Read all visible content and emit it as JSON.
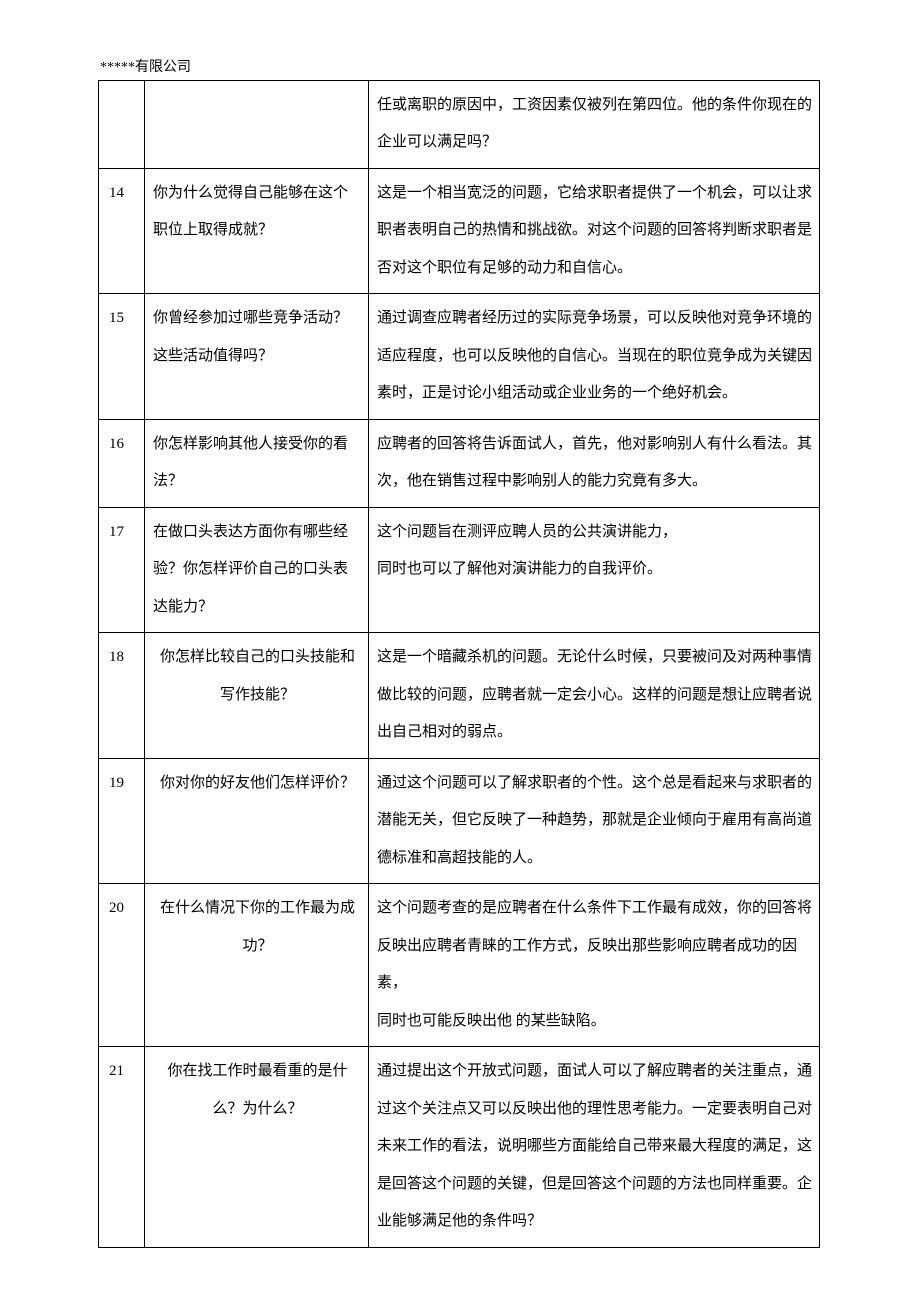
{
  "header": {
    "company": "*****有限公司"
  },
  "table": {
    "rows": [
      {
        "num": "",
        "question": "",
        "q_align": "left",
        "answer": "任或离职的原因中，工资因素仅被列在第四位。他的条件你现在的企业可以满足吗？"
      },
      {
        "num": "14",
        "question": "你为什么觉得自己能够在这个职位上取得成就？",
        "q_align": "left",
        "answer": "这是一个相当宽泛的问题，它给求职者提供了一个机会，可以让求职者表明自己的热情和挑战欲。对这个问题的回答将判断求职者是否对这个职位有足够的动力和自信心。\n"
      },
      {
        "num": "15",
        "question": "你曾经参加过哪些竞争活动？这些活动值得吗？",
        "q_align": "left",
        "answer": "通过调查应聘者经历过的实际竞争场景，可以反映他对竞争环境的适应程度，也可以反映他的自信心。当现在的职位竞争成为关键因素时，正是讨论小组活动或企业业务的一个绝好机会。"
      },
      {
        "num": "16",
        "question": "你怎样影响其他人接受你的看法？",
        "q_align": "left",
        "answer": "应聘者的回答将告诉面试人，首先，他对影响别人有什么看法。其次，他在销售过程中影响别人的能力究竟有多大。"
      },
      {
        "num": "17",
        "question": "在做口头表达方面你有哪些经验？你怎样评价自己的口头表达能力？",
        "q_align": "left",
        "answer": "这个问题旨在测评应聘人员的公共演讲能力，\n同时也可以了解他对演讲能力的自我评价。"
      },
      {
        "num": "18",
        "question": "你怎样比较自己的口头技能和写作技能？",
        "q_align": "center",
        "answer": "这是一个暗藏杀机的问题。无论什么时候，只要被问及对两种事情做比较的问题，应聘者就一定会小心。这样的问题是想让应聘者说出自己相对的弱点。"
      },
      {
        "num": "19",
        "question": "你对你的好友他们怎样评价？",
        "q_align": "center",
        "answer": "通过这个问题可以了解求职者的个性。这个总是看起来与求职者的潜能无关，但它反映了一种趋势，那就是企业倾向于雇用有高尚道德标准和高超技能的人。"
      },
      {
        "num": "20",
        "question": "在什么情况下你的工作最为成功？",
        "q_align": "center",
        "answer": "这个问题考查的是应聘者在什么条件下工作最有成效，你的回答将反映出应聘者青睐的工作方式，反映出那些影响应聘者成功的因素，\n同时也可能反映出他 的某些缺陷。"
      },
      {
        "num": "21",
        "question": "你在找工作时最看重的是什么？为什么？",
        "q_align": "center",
        "answer": "通过提出这个开放式问题，面试人可以了解应聘者的关注重点，通过这个关注点又可以反映出他的理性思考能力。一定要表明自己对未来工作的看法，说明哪些方面能给自己带来最大程度的满足，这是回答这个问题的关键，但是回答这个问题的方法也同样重要。企业能够满足他的条件吗？"
      }
    ]
  }
}
